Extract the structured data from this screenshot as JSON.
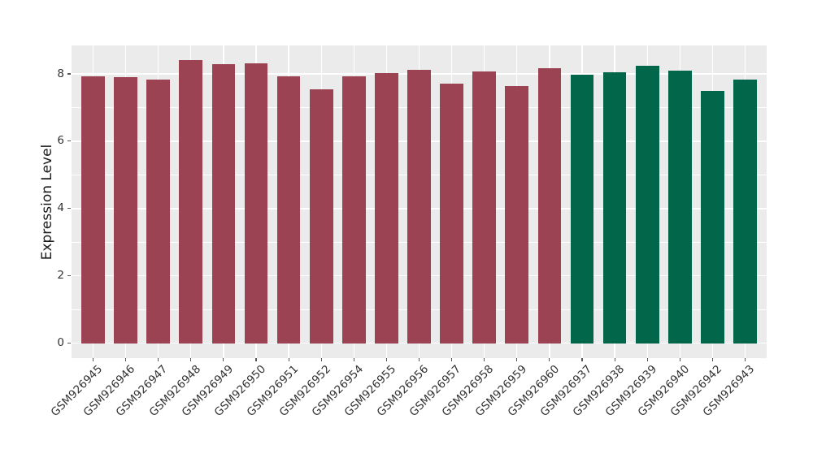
{
  "chart_data": {
    "type": "bar",
    "title": "",
    "xlabel": "",
    "ylabel": "Expression Level",
    "categories": [
      "GSM926945",
      "GSM926946",
      "GSM926947",
      "GSM926948",
      "GSM926949",
      "GSM926950",
      "GSM926951",
      "GSM926952",
      "GSM926954",
      "GSM926955",
      "GSM926956",
      "GSM926957",
      "GSM926958",
      "GSM926959",
      "GSM926960",
      "GSM926937",
      "GSM926938",
      "GSM926939",
      "GSM926940",
      "GSM926942",
      "GSM926943"
    ],
    "values": [
      7.93,
      7.9,
      7.83,
      8.4,
      8.3,
      8.32,
      7.93,
      7.54,
      7.92,
      8.03,
      8.11,
      7.7,
      8.08,
      7.64,
      8.16,
      7.98,
      8.05,
      8.24,
      8.1,
      7.49,
      7.82
    ],
    "bar_colors": [
      "#9B4353",
      "#9B4353",
      "#9B4353",
      "#9B4353",
      "#9B4353",
      "#9B4353",
      "#9B4353",
      "#9B4353",
      "#9B4353",
      "#9B4353",
      "#9B4353",
      "#9B4353",
      "#9B4353",
      "#9B4353",
      "#9B4353",
      "#02664B",
      "#02664B",
      "#02664B",
      "#02664B",
      "#02664B",
      "#02664B"
    ],
    "groups": [
      {
        "color": "#9B4353",
        "count": 15
      },
      {
        "color": "#02664B",
        "count": 6
      }
    ],
    "ylim": [
      -0.446,
      8.845
    ],
    "yticks": [
      0,
      2,
      4,
      6,
      8
    ],
    "minor_yticks": [
      1,
      3,
      5,
      7
    ],
    "grid": true,
    "legend": null,
    "panel_background": "#EBEBEB",
    "gridline_color": "#FFFFFF",
    "figure_background": "#FFFFFF"
  }
}
